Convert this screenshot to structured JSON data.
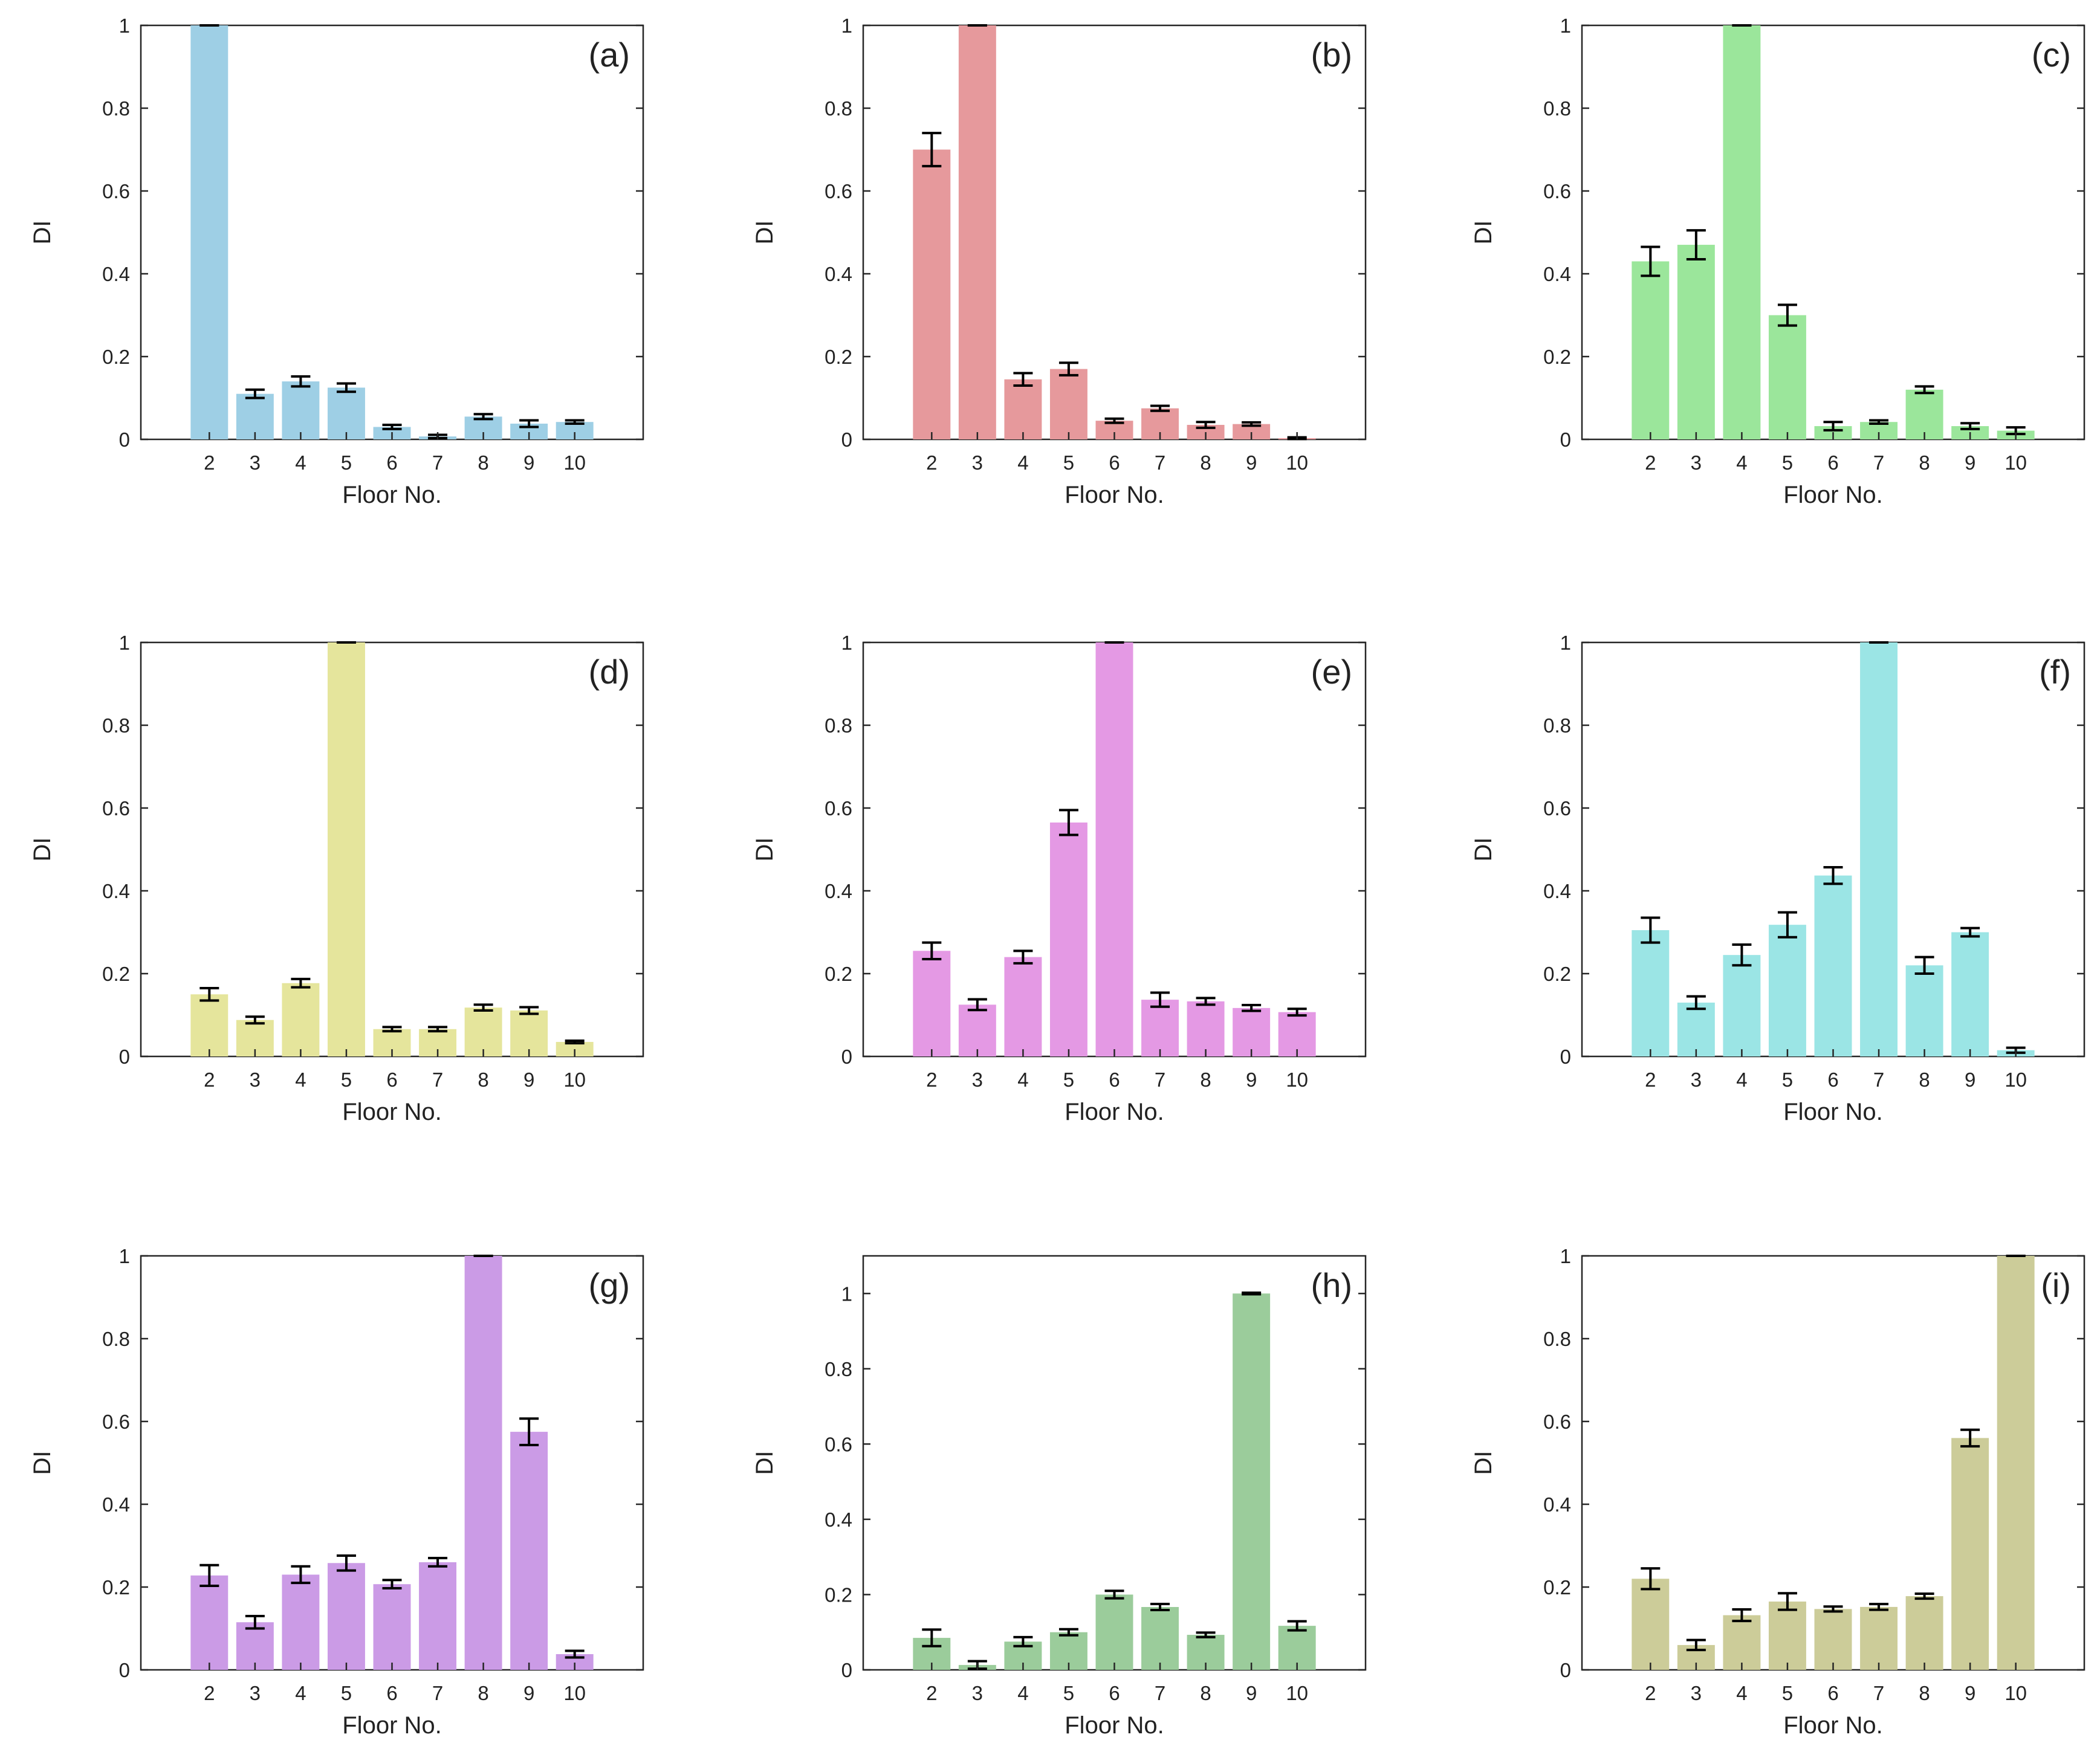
{
  "chart_data": [
    {
      "type": "bar",
      "panel": "(a)",
      "color": "#9ecfe5",
      "xlabel": "Floor No.",
      "ylabel": "DI",
      "ylim": [
        0,
        1
      ],
      "yticks": [
        "0",
        "0.2",
        "0.4",
        "0.6",
        "0.8",
        "1"
      ],
      "categories": [
        "2",
        "3",
        "4",
        "5",
        "6",
        "7",
        "8",
        "9",
        "10"
      ],
      "values": [
        1.0,
        0.11,
        0.14,
        0.125,
        0.03,
        0.007,
        0.055,
        0.038,
        0.042
      ],
      "errors": [
        0.0,
        0.01,
        0.012,
        0.01,
        0.005,
        0.004,
        0.006,
        0.008,
        0.004
      ]
    },
    {
      "type": "bar",
      "panel": "(b)",
      "color": "#e6999c",
      "xlabel": "Floor No.",
      "ylabel": "DI",
      "ylim": [
        0,
        1
      ],
      "yticks": [
        "0",
        "0.2",
        "0.4",
        "0.6",
        "0.8",
        "1"
      ],
      "categories": [
        "2",
        "3",
        "4",
        "5",
        "6",
        "7",
        "8",
        "9",
        "10"
      ],
      "values": [
        0.7,
        1.0,
        0.145,
        0.17,
        0.045,
        0.075,
        0.035,
        0.037,
        0.003
      ],
      "errors": [
        0.04,
        0.0,
        0.015,
        0.015,
        0.005,
        0.006,
        0.007,
        0.004,
        0.002
      ]
    },
    {
      "type": "bar",
      "panel": "(c)",
      "color": "#9be69b",
      "xlabel": "Floor No.",
      "ylabel": "DI",
      "ylim": [
        0,
        1
      ],
      "yticks": [
        "0",
        "0.2",
        "0.4",
        "0.6",
        "0.8",
        "1"
      ],
      "categories": [
        "2",
        "3",
        "4",
        "5",
        "6",
        "7",
        "8",
        "9",
        "10"
      ],
      "values": [
        0.43,
        0.47,
        1.0,
        0.3,
        0.032,
        0.042,
        0.12,
        0.032,
        0.021
      ],
      "errors": [
        0.035,
        0.035,
        0.0,
        0.025,
        0.01,
        0.004,
        0.008,
        0.007,
        0.008
      ]
    },
    {
      "type": "bar",
      "panel": "(d)",
      "color": "#e5e59c",
      "xlabel": "Floor No.",
      "ylabel": "DI",
      "ylim": [
        0,
        1
      ],
      "yticks": [
        "0",
        "0.2",
        "0.4",
        "0.6",
        "0.8",
        "1"
      ],
      "categories": [
        "2",
        "3",
        "4",
        "5",
        "6",
        "7",
        "8",
        "9",
        "10"
      ],
      "values": [
        0.15,
        0.088,
        0.177,
        1.0,
        0.066,
        0.066,
        0.118,
        0.111,
        0.035
      ],
      "errors": [
        0.015,
        0.008,
        0.01,
        0.0,
        0.005,
        0.005,
        0.007,
        0.008,
        0.003
      ]
    },
    {
      "type": "bar",
      "panel": "(e)",
      "color": "#e499e4",
      "xlabel": "Floor No.",
      "ylabel": "DI",
      "ylim": [
        0,
        1
      ],
      "yticks": [
        "0",
        "0.2",
        "0.4",
        "0.6",
        "0.8",
        "1"
      ],
      "categories": [
        "2",
        "3",
        "4",
        "5",
        "6",
        "7",
        "8",
        "9",
        "10"
      ],
      "values": [
        0.255,
        0.125,
        0.24,
        0.565,
        1.0,
        0.137,
        0.133,
        0.117,
        0.107
      ],
      "errors": [
        0.02,
        0.013,
        0.015,
        0.03,
        0.0,
        0.017,
        0.008,
        0.007,
        0.008
      ]
    },
    {
      "type": "bar",
      "panel": "(f)",
      "color": "#9be5e5",
      "xlabel": "Floor No.",
      "ylabel": "DI",
      "ylim": [
        0,
        1
      ],
      "yticks": [
        "0",
        "0.2",
        "0.4",
        "0.6",
        "0.8",
        "1"
      ],
      "categories": [
        "2",
        "3",
        "4",
        "5",
        "6",
        "7",
        "8",
        "9",
        "10"
      ],
      "values": [
        0.305,
        0.13,
        0.245,
        0.318,
        0.437,
        1.0,
        0.22,
        0.3,
        0.015
      ],
      "errors": [
        0.03,
        0.015,
        0.025,
        0.03,
        0.02,
        0.0,
        0.02,
        0.01,
        0.006
      ]
    },
    {
      "type": "bar",
      "panel": "(g)",
      "color": "#cb9be6",
      "xlabel": "Floor No.",
      "ylabel": "DI",
      "ylim": [
        0,
        1
      ],
      "yticks": [
        "0",
        "0.2",
        "0.4",
        "0.6",
        "0.8",
        "1"
      ],
      "categories": [
        "2",
        "3",
        "4",
        "5",
        "6",
        "7",
        "8",
        "9",
        "10"
      ],
      "values": [
        0.228,
        0.115,
        0.23,
        0.258,
        0.207,
        0.26,
        1.0,
        0.575,
        0.038
      ],
      "errors": [
        0.025,
        0.015,
        0.02,
        0.018,
        0.01,
        0.01,
        0.0,
        0.032,
        0.008
      ]
    },
    {
      "type": "bar",
      "panel": "(h)",
      "color": "#9bcc9b",
      "xlabel": "Floor No.",
      "ylabel": "DI",
      "ylim": [
        0,
        1.1
      ],
      "yticks": [
        "0",
        "0.2",
        "0.4",
        "0.6",
        "0.8",
        "1"
      ],
      "categories": [
        "2",
        "3",
        "4",
        "5",
        "6",
        "7",
        "8",
        "9",
        "10"
      ],
      "values": [
        0.085,
        0.013,
        0.075,
        0.1,
        0.2,
        0.167,
        0.093,
        1.0,
        0.117
      ],
      "errors": [
        0.022,
        0.01,
        0.012,
        0.008,
        0.01,
        0.008,
        0.006,
        0.002,
        0.012
      ]
    },
    {
      "type": "bar",
      "panel": "(i)",
      "color": "#cccc99",
      "xlabel": "Floor No.",
      "ylabel": "DI",
      "ylim": [
        0,
        1
      ],
      "yticks": [
        "0",
        "0.2",
        "0.4",
        "0.6",
        "0.8",
        "1"
      ],
      "categories": [
        "2",
        "3",
        "4",
        "5",
        "6",
        "7",
        "8",
        "9",
        "10"
      ],
      "values": [
        0.22,
        0.06,
        0.132,
        0.165,
        0.147,
        0.152,
        0.178,
        0.56,
        1.0
      ],
      "errors": [
        0.025,
        0.012,
        0.014,
        0.02,
        0.006,
        0.007,
        0.006,
        0.02,
        0.0
      ]
    }
  ]
}
